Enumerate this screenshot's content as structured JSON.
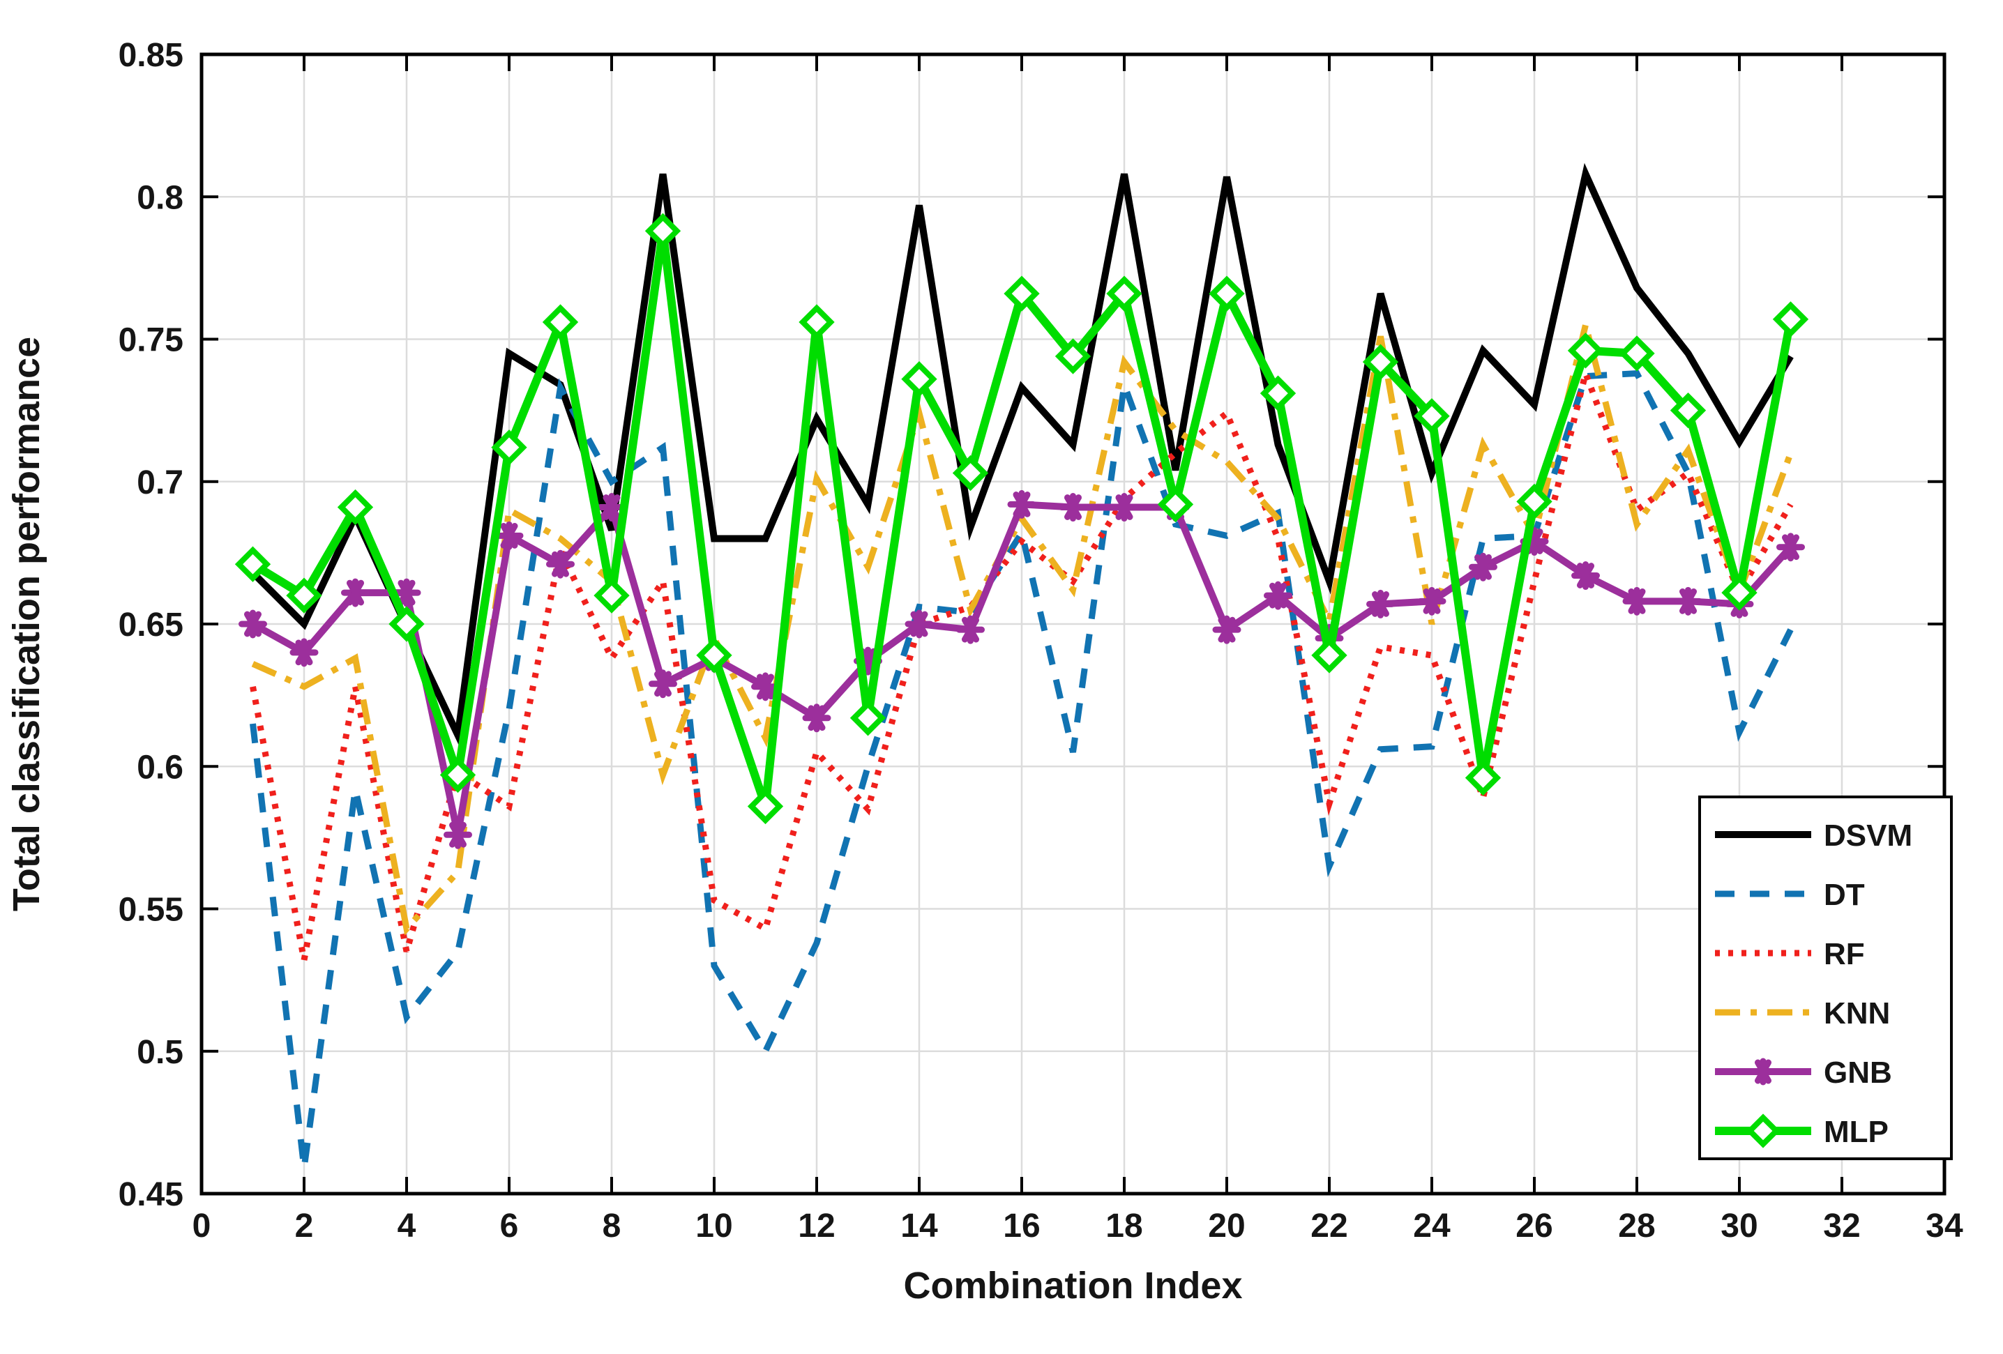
{
  "chart_data": {
    "type": "line",
    "title": "",
    "xlabel": "Combination Index",
    "ylabel": "Total classification performance",
    "xlim": [
      0,
      34
    ],
    "ylim": [
      0.45,
      0.85
    ],
    "grid": true,
    "legend_position": "lower right",
    "x_ticks": [
      0,
      2,
      4,
      6,
      8,
      10,
      12,
      14,
      16,
      18,
      20,
      22,
      24,
      26,
      28,
      30,
      32,
      34
    ],
    "x_tick_labels": [
      "0",
      "2",
      "4",
      "6",
      "8",
      "10",
      "12",
      "14",
      "16",
      "18",
      "20",
      "22",
      "24",
      "26",
      "28",
      "30",
      "32",
      "34"
    ],
    "y_ticks": [
      0.45,
      0.5,
      0.55,
      0.6,
      0.65,
      0.7,
      0.75,
      0.8,
      0.85
    ],
    "y_tick_labels": [
      "0.45",
      "0.5",
      "0.55",
      "0.6",
      "0.65",
      "0.7",
      "0.75",
      "0.8",
      "0.85"
    ],
    "x": [
      1,
      2,
      3,
      4,
      5,
      6,
      7,
      8,
      9,
      10,
      11,
      12,
      13,
      14,
      15,
      16,
      17,
      18,
      19,
      20,
      21,
      22,
      23,
      24,
      25,
      26,
      27,
      28,
      29,
      30,
      31
    ],
    "axis_color": "#000000",
    "grid_color": "#dcdcdc",
    "background_color": "#ffffff",
    "series": [
      {
        "name": "DSVM",
        "color": "#000000",
        "line_style": "solid",
        "marker": "none",
        "values": [
          0.668,
          0.65,
          0.688,
          0.649,
          0.611,
          0.745,
          0.734,
          0.683,
          0.808,
          0.68,
          0.68,
          0.722,
          0.692,
          0.797,
          0.684,
          0.733,
          0.713,
          0.808,
          0.704,
          0.807,
          0.713,
          0.665,
          0.766,
          0.703,
          0.746,
          0.727,
          0.808,
          0.768,
          0.745,
          0.714,
          0.744
        ]
      },
      {
        "name": "DT",
        "color": "#1173b2",
        "line_style": "dashed",
        "marker": "none",
        "values": [
          0.615,
          0.459,
          0.592,
          0.512,
          0.535,
          0.62,
          0.733,
          0.7,
          0.712,
          0.53,
          0.5,
          0.538,
          0.6,
          0.656,
          0.654,
          0.682,
          0.605,
          0.734,
          0.685,
          0.681,
          0.689,
          0.565,
          0.606,
          0.607,
          0.68,
          0.681,
          0.737,
          0.738,
          0.703,
          0.612,
          0.648
        ]
      },
      {
        "name": "RF",
        "color": "#f0201c",
        "line_style": "dotted",
        "marker": "none",
        "values": [
          0.628,
          0.532,
          0.628,
          0.535,
          0.598,
          0.586,
          0.676,
          0.638,
          0.665,
          0.553,
          0.543,
          0.605,
          0.585,
          0.65,
          0.656,
          0.679,
          0.665,
          0.694,
          0.71,
          0.724,
          0.68,
          0.587,
          0.642,
          0.639,
          0.589,
          0.665,
          0.738,
          0.69,
          0.703,
          0.661,
          0.692
        ]
      },
      {
        "name": "KNN",
        "color": "#edb120",
        "line_style": "dashdot",
        "marker": "none",
        "values": [
          0.636,
          0.628,
          0.638,
          0.543,
          0.563,
          0.69,
          0.68,
          0.665,
          0.597,
          0.645,
          0.61,
          0.701,
          0.67,
          0.724,
          0.655,
          0.687,
          0.662,
          0.742,
          0.718,
          0.707,
          0.687,
          0.651,
          0.751,
          0.65,
          0.713,
          0.681,
          0.755,
          0.685,
          0.711,
          0.661,
          0.71
        ]
      },
      {
        "name": "GNB",
        "color": "#9c2f9c",
        "line_style": "solid",
        "marker": "asterisk",
        "values": [
          0.65,
          0.64,
          0.661,
          0.661,
          0.576,
          0.681,
          0.671,
          0.691,
          0.629,
          0.638,
          0.628,
          0.617,
          0.637,
          0.65,
          0.648,
          0.692,
          0.691,
          0.691,
          0.691,
          0.648,
          0.66,
          0.645,
          0.657,
          0.658,
          0.67,
          0.679,
          0.667,
          0.658,
          0.658,
          0.657,
          0.677
        ]
      },
      {
        "name": "MLP",
        "color": "#00dd00",
        "line_style": "solid",
        "marker": "diamond",
        "values": [
          0.671,
          0.66,
          0.691,
          0.65,
          0.597,
          0.712,
          0.756,
          0.66,
          0.788,
          0.639,
          0.586,
          0.756,
          0.617,
          0.736,
          0.703,
          0.766,
          0.744,
          0.766,
          0.692,
          0.766,
          0.731,
          0.639,
          0.742,
          0.723,
          0.596,
          0.693,
          0.746,
          0.745,
          0.725,
          0.661,
          0.757
        ]
      }
    ]
  }
}
